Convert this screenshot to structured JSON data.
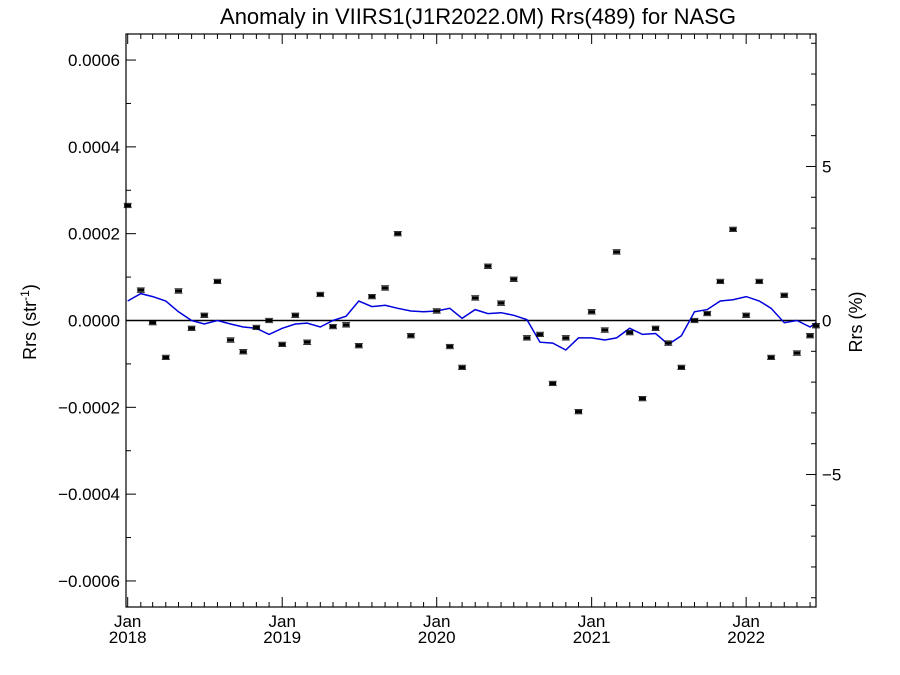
{
  "chart_data": {
    "type": "line",
    "title": "Anomaly in VIIRS1(J1R2022.0M) Rrs(489) for NASG",
    "xlabel": "",
    "ylabel": "Rrs (str",
    "ylabel_sup": "-1",
    "ylabel_close": ")",
    "y2label": "Rrs (%)",
    "xlim": [
      "2017-12-28",
      "2022-06-15"
    ],
    "ylim": [
      -0.00066,
      0.00066
    ],
    "y2lim": [
      -9.3,
      9.3
    ],
    "grid": false,
    "x_ticks": [
      {
        "month": "Jan",
        "year": "2018",
        "date": "2018-01-01"
      },
      {
        "month": "Jan",
        "year": "2019",
        "date": "2019-01-01"
      },
      {
        "month": "Jan",
        "year": "2020",
        "date": "2020-01-01"
      },
      {
        "month": "Jan",
        "year": "2021",
        "date": "2021-01-01"
      },
      {
        "month": "Jan",
        "year": "2022",
        "date": "2022-01-01"
      }
    ],
    "y_ticks": [
      {
        "value": 0.0006,
        "label": "0.0006"
      },
      {
        "value": 0.0004,
        "label": "0.0004"
      },
      {
        "value": 0.0002,
        "label": "0.0002"
      },
      {
        "value": 0.0,
        "label": "0.0000"
      },
      {
        "value": -0.0002,
        "label": "−0.0002"
      },
      {
        "value": -0.0004,
        "label": "−0.0004"
      },
      {
        "value": -0.0006,
        "label": "−0.0006"
      }
    ],
    "y2_ticks": [
      {
        "value": 5,
        "label": "5"
      },
      {
        "value": 0,
        "label": "0"
      },
      {
        "value": -5,
        "label": "−5"
      }
    ],
    "series": [
      {
        "style": "line",
        "color": "#0000dd",
        "points": [
          [
            "2018-01-01",
            4.5e-05
          ],
          [
            "2018-02-01",
            6.2e-05
          ],
          [
            "2018-03-01",
            5.5e-05
          ],
          [
            "2018-04-01",
            4.5e-05
          ],
          [
            "2018-05-01",
            2e-05
          ],
          [
            "2018-06-01",
            0.0
          ],
          [
            "2018-07-01",
            -8e-06
          ],
          [
            "2018-08-01",
            0.0
          ],
          [
            "2018-09-01",
            -8e-06
          ],
          [
            "2018-10-01",
            -1.5e-05
          ],
          [
            "2018-11-01",
            -1.8e-05
          ],
          [
            "2018-12-01",
            -3.2e-05
          ],
          [
            "2019-01-01",
            -1.8e-05
          ],
          [
            "2019-02-01",
            -8e-06
          ],
          [
            "2019-03-01",
            -6e-06
          ],
          [
            "2019-04-01",
            -1.5e-05
          ],
          [
            "2019-05-01",
            0.0
          ],
          [
            "2019-06-01",
            1e-05
          ],
          [
            "2019-07-01",
            4.5e-05
          ],
          [
            "2019-08-01",
            3.2e-05
          ],
          [
            "2019-09-01",
            3.5e-05
          ],
          [
            "2019-10-01",
            2.8e-05
          ],
          [
            "2019-11-01",
            2.2e-05
          ],
          [
            "2019-12-01",
            2e-05
          ],
          [
            "2020-01-01",
            2.2e-05
          ],
          [
            "2020-02-01",
            2.8e-05
          ],
          [
            "2020-03-01",
            5e-06
          ],
          [
            "2020-04-01",
            2.5e-05
          ],
          [
            "2020-05-01",
            1.6e-05
          ],
          [
            "2020-06-01",
            1.8e-05
          ],
          [
            "2020-07-01",
            1.2e-05
          ],
          [
            "2020-08-01",
            2e-06
          ],
          [
            "2020-09-01",
            -5e-05
          ],
          [
            "2020-10-01",
            -5.2e-05
          ],
          [
            "2020-11-01",
            -6.8e-05
          ],
          [
            "2020-12-01",
            -4e-05
          ],
          [
            "2021-01-01",
            -4e-05
          ],
          [
            "2021-02-01",
            -4.5e-05
          ],
          [
            "2021-03-01",
            -4e-05
          ],
          [
            "2021-04-01",
            -1.8e-05
          ],
          [
            "2021-05-01",
            -3.2e-05
          ],
          [
            "2021-06-01",
            -3e-05
          ],
          [
            "2021-07-01",
            -5.5e-05
          ],
          [
            "2021-08-01",
            -3.5e-05
          ],
          [
            "2021-09-01",
            2e-05
          ],
          [
            "2021-10-01",
            2.5e-05
          ],
          [
            "2021-11-01",
            4.5e-05
          ],
          [
            "2021-12-01",
            4.8e-05
          ],
          [
            "2022-01-01",
            5.5e-05
          ],
          [
            "2022-02-01",
            4.5e-05
          ],
          [
            "2022-03-01",
            2.8e-05
          ],
          [
            "2022-04-01",
            -5e-06
          ],
          [
            "2022-05-01",
            0.0
          ],
          [
            "2022-06-01",
            -1.5e-05
          ],
          [
            "2022-06-15",
            -5e-06
          ]
        ]
      },
      {
        "style": "errorbar",
        "color": "#000000",
        "points": [
          [
            "2018-01-01",
            0.000265
          ],
          [
            "2018-02-01",
            7e-05
          ],
          [
            "2018-03-01",
            -5e-06
          ],
          [
            "2018-04-01",
            -8.5e-05
          ],
          [
            "2018-05-01",
            6.8e-05
          ],
          [
            "2018-06-01",
            -1.8e-05
          ],
          [
            "2018-07-01",
            1.2e-05
          ],
          [
            "2018-08-01",
            9e-05
          ],
          [
            "2018-09-01",
            -4.5e-05
          ],
          [
            "2018-10-01",
            -7.2e-05
          ],
          [
            "2018-11-01",
            -1.6e-05
          ],
          [
            "2018-12-01",
            0.0
          ],
          [
            "2019-01-01",
            -5.5e-05
          ],
          [
            "2019-02-01",
            1.2e-05
          ],
          [
            "2019-03-01",
            -5e-05
          ],
          [
            "2019-04-01",
            6e-05
          ],
          [
            "2019-05-01",
            -1.4e-05
          ],
          [
            "2019-06-01",
            -1e-05
          ],
          [
            "2019-07-01",
            -5.8e-05
          ],
          [
            "2019-08-01",
            5.5e-05
          ],
          [
            "2019-09-01",
            7.5e-05
          ],
          [
            "2019-10-01",
            0.0002
          ],
          [
            "2019-11-01",
            -3.5e-05
          ],
          [
            "2020-01-01",
            2.2e-05
          ],
          [
            "2020-02-01",
            -6e-05
          ],
          [
            "2020-03-01",
            -0.000108
          ],
          [
            "2020-04-01",
            5.2e-05
          ],
          [
            "2020-05-01",
            0.000125
          ],
          [
            "2020-06-01",
            4e-05
          ],
          [
            "2020-07-01",
            9.5e-05
          ],
          [
            "2020-08-01",
            -4e-05
          ],
          [
            "2020-09-01",
            -3.2e-05
          ],
          [
            "2020-10-01",
            -0.000145
          ],
          [
            "2020-11-01",
            -4e-05
          ],
          [
            "2020-12-01",
            -0.00021
          ],
          [
            "2021-01-01",
            2e-05
          ],
          [
            "2021-02-01",
            -2.2e-05
          ],
          [
            "2021-03-01",
            0.000158
          ],
          [
            "2021-04-01",
            -2.8e-05
          ],
          [
            "2021-05-01",
            -0.00018
          ],
          [
            "2021-06-01",
            -1.8e-05
          ],
          [
            "2021-07-01",
            -5.2e-05
          ],
          [
            "2021-08-01",
            -0.000108
          ],
          [
            "2021-09-01",
            0.0
          ],
          [
            "2021-10-01",
            1.6e-05
          ],
          [
            "2021-11-01",
            9e-05
          ],
          [
            "2021-12-01",
            0.00021
          ],
          [
            "2022-01-01",
            1.2e-05
          ],
          [
            "2022-02-01",
            9e-05
          ],
          [
            "2022-03-01",
            -8.5e-05
          ],
          [
            "2022-04-01",
            5.8e-05
          ],
          [
            "2022-05-01",
            -7.5e-05
          ],
          [
            "2022-06-01",
            -3.5e-05
          ],
          [
            "2022-06-15",
            -1.2e-05
          ]
        ]
      }
    ]
  }
}
